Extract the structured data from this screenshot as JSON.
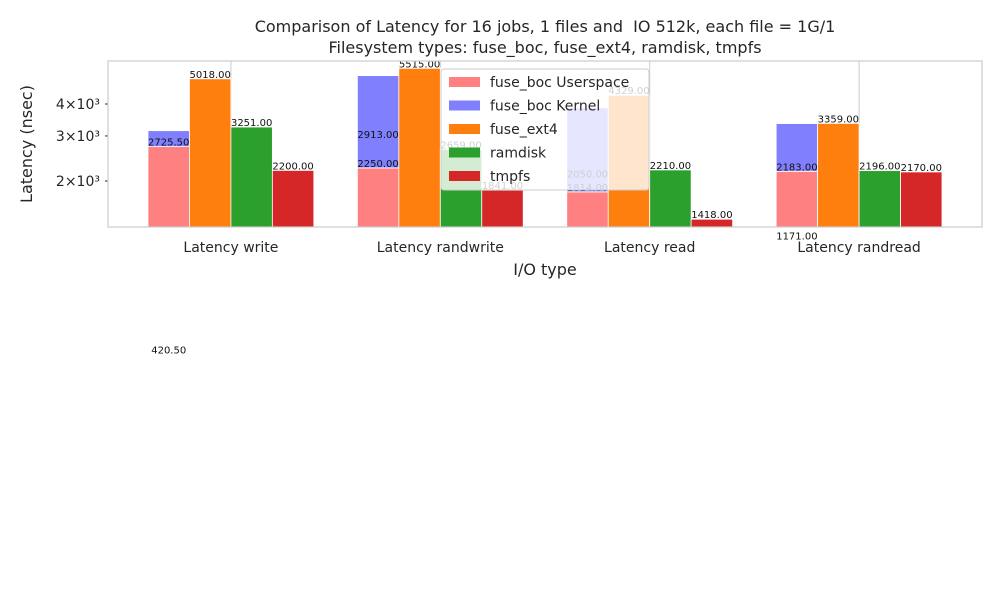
{
  "chart_data": {
    "type": "bar",
    "title": "Comparison of Latency for 16 jobs, 1 files and  IO 512k, each file = 1G/1",
    "subtitle": "Filesystem types: fuse_boc, fuse_ext4, ramdisk, tmpfs",
    "xlabel": "I/O type",
    "ylabel": "Latency (nsec)",
    "categories": [
      "Latency write",
      "Latency randwrite",
      "Latency read",
      "Latency randread"
    ],
    "series": [
      {
        "name": "fuse_boc Userspace",
        "color": "#ff8080",
        "values": [
          2725.5,
          2250,
          1814,
          2183
        ],
        "value_labels": [
          "2725.50",
          "2250.00",
          "1814.00",
          "2183.00"
        ]
      },
      {
        "name": "fuse_boc Kernel",
        "color": "#8080ff",
        "stack": true,
        "values": [
          420.5,
          2913,
          2050,
          1171
        ],
        "value_labels": [
          "420.50",
          "2913.00",
          "2050.00",
          "1171.00"
        ]
      },
      {
        "name": "fuse_ext4",
        "color": "#ff7f0e",
        "values": [
          5018,
          5515,
          4329,
          3359
        ],
        "value_labels": [
          "5018.00",
          "5515.00",
          "4329.00",
          "3359.00"
        ]
      },
      {
        "name": "ramdisk",
        "color": "#2ca02c",
        "values": [
          3251,
          2659,
          2210,
          2196
        ],
        "value_labels": [
          "3251.00",
          "2659.00",
          "2210.00",
          "2196.00"
        ]
      },
      {
        "name": "tmpfs",
        "color": "#d62728",
        "values": [
          2200,
          1841,
          1418,
          2170
        ],
        "value_labels": [
          "2200.00",
          "1841.00",
          "1418.00",
          "2170.00"
        ]
      }
    ],
    "ylim": [
      1322,
      5890
    ],
    "yscale": "log",
    "yticks": [
      {
        "value": 2000,
        "label": "2×10³"
      },
      {
        "value": 3000,
        "label": "3×10³"
      },
      {
        "value": 4000,
        "label": "4×10³"
      }
    ],
    "grid": "x",
    "legend": "upper center"
  }
}
